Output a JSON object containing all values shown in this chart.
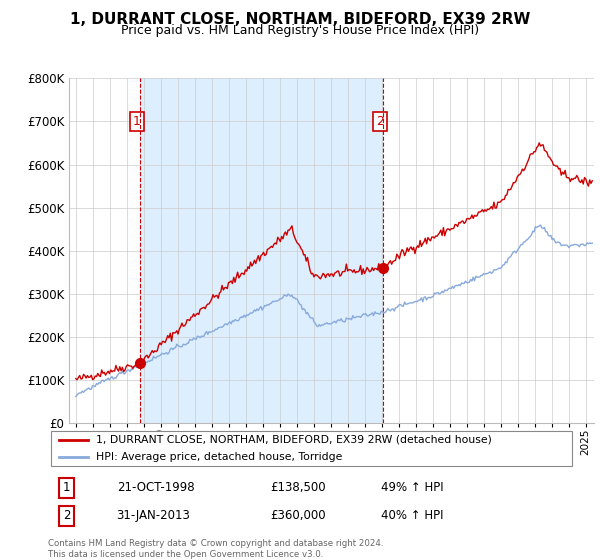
{
  "title": "1, DURRANT CLOSE, NORTHAM, BIDEFORD, EX39 2RW",
  "subtitle": "Price paid vs. HM Land Registry's House Price Index (HPI)",
  "legend_line1": "1, DURRANT CLOSE, NORTHAM, BIDEFORD, EX39 2RW (detached house)",
  "legend_line2": "HPI: Average price, detached house, Torridge",
  "sale1_date": "21-OCT-1998",
  "sale1_price": "£138,500",
  "sale1_hpi": "49% ↑ HPI",
  "sale2_date": "31-JAN-2013",
  "sale2_price": "£360,000",
  "sale2_hpi": "40% ↑ HPI",
  "footer": "Contains HM Land Registry data © Crown copyright and database right 2024.\nThis data is licensed under the Open Government Licence v3.0.",
  "ylim": [
    0,
    800000
  ],
  "yticks": [
    0,
    100000,
    200000,
    300000,
    400000,
    500000,
    600000,
    700000,
    800000
  ],
  "sale1_x": 1998.8,
  "sale1_y": 138500,
  "sale2_x": 2013.08,
  "sale2_y": 360000,
  "red_color": "#cc0000",
  "blue_color": "#88aadd",
  "shade_color": "#ddeeff",
  "vline_color": "#cc0000",
  "background_color": "#ffffff",
  "grid_color": "#cccccc",
  "xlim_left": 1994.6,
  "xlim_right": 2025.5
}
